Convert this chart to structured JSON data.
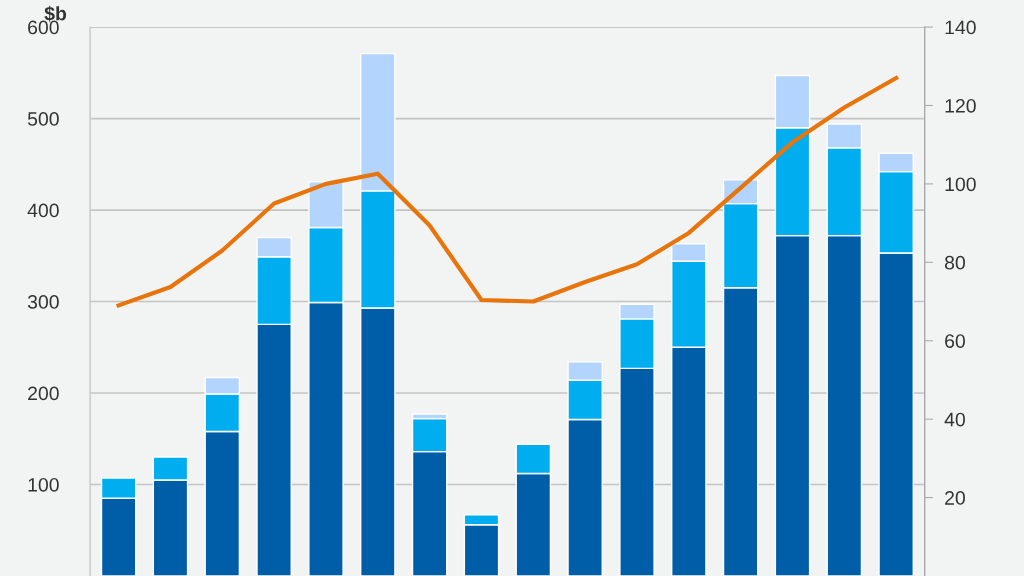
{
  "chart_data": {
    "type": "bar",
    "stacked": true,
    "ylabel": "$b",
    "categories": [
      null,
      null,
      null,
      null,
      null,
      null,
      null,
      null,
      null,
      null,
      null,
      null,
      null,
      null,
      null,
      null
    ],
    "series": [
      {
        "color": "#005ea8",
        "values": [
          85,
          105,
          158,
          275,
          299,
          293,
          136,
          56,
          112,
          171,
          227,
          250,
          315,
          372,
          372,
          353
        ]
      },
      {
        "color": "#00aeef",
        "values": [
          22,
          25,
          41,
          74,
          82,
          128,
          36,
          11,
          32,
          43,
          54,
          94,
          92,
          118,
          96,
          89
        ]
      },
      {
        "color": "#b3d4fc",
        "values": [
          null,
          null,
          18,
          21,
          50,
          150,
          5,
          null,
          null,
          20,
          16,
          19,
          26,
          57,
          26,
          20
        ]
      },
      {
        "type": "line",
        "axis": "y2",
        "color": "#e8740c",
        "values": [
          69,
          73.7,
          83,
          95,
          100,
          102.6,
          89.4,
          70.4,
          70,
          75,
          79.5,
          87.5,
          99,
          110.6,
          119.5,
          127
        ]
      }
    ],
    "ylim": [
      0,
      600
    ],
    "yticks": [
      100,
      200,
      300,
      400,
      500,
      600
    ],
    "y2lim": [
      0,
      140
    ],
    "y2ticks": [
      20,
      40,
      60,
      80,
      100,
      120,
      140
    ],
    "grid": "y",
    "marker": "none",
    "line_style": "solid"
  }
}
